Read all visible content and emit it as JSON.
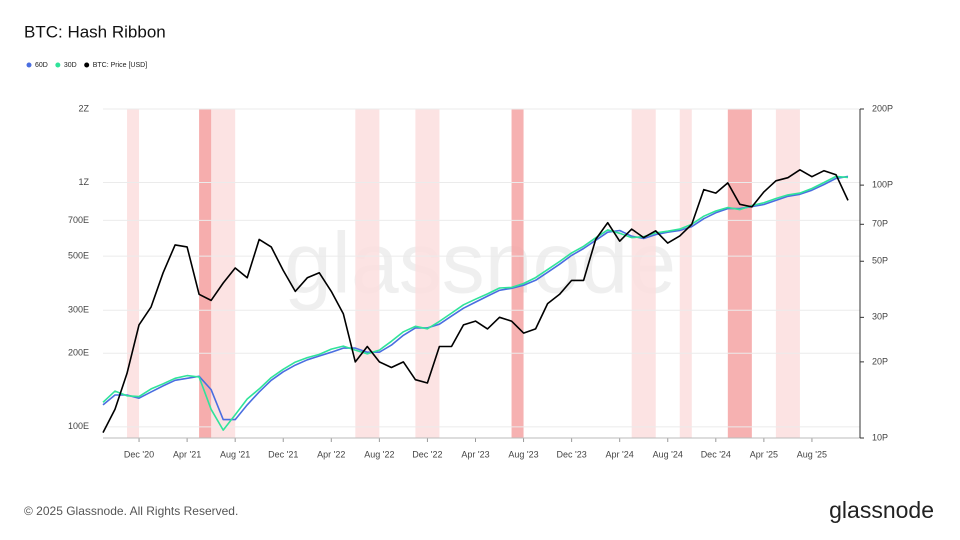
{
  "chart_data": {
    "type": "line",
    "title": "BTC: Hash Ribbon",
    "x": [
      "2020-09",
      "2020-10",
      "2020-11",
      "2020-12",
      "2021-01",
      "2021-02",
      "2021-03",
      "2021-04",
      "2021-05",
      "2021-06",
      "2021-07",
      "2021-08",
      "2021-09",
      "2021-10",
      "2021-11",
      "2021-12",
      "2022-01",
      "2022-02",
      "2022-03",
      "2022-04",
      "2022-05",
      "2022-06",
      "2022-07",
      "2022-08",
      "2022-09",
      "2022-10",
      "2022-11",
      "2022-12",
      "2023-01",
      "2023-02",
      "2023-03",
      "2023-04",
      "2023-05",
      "2023-06",
      "2023-07",
      "2023-08",
      "2023-09",
      "2023-10",
      "2023-11",
      "2023-12",
      "2024-01",
      "2024-02",
      "2024-03",
      "2024-04",
      "2024-05",
      "2024-06",
      "2024-07",
      "2024-08",
      "2024-09",
      "2024-10",
      "2024-11",
      "2024-12",
      "2025-01",
      "2025-02",
      "2025-03",
      "2025-04",
      "2025-05",
      "2025-06",
      "2025-07",
      "2025-08",
      "2025-09",
      "2025-10",
      "2025-11"
    ],
    "series": [
      {
        "name": "60D",
        "color": "#4a6ee0",
        "axis": "y",
        "values": [
          123,
          135,
          135,
          131,
          139,
          147,
          155,
          158,
          161,
          142,
          107,
          107,
          123,
          139,
          155,
          168,
          179,
          188,
          195,
          202,
          210,
          210,
          202,
          202,
          216,
          237,
          254,
          254,
          263,
          284,
          306,
          324,
          343,
          362,
          369,
          380,
          398,
          429,
          463,
          503,
          537,
          580,
          626,
          636,
          603,
          590,
          612,
          626,
          636,
          660,
          711,
          752,
          782,
          782,
          797,
          813,
          845,
          878,
          895,
          930,
          982,
          1040,
          1060
        ]
      },
      {
        "name": "30D",
        "color": "#2fe39a",
        "axis": "y",
        "values": [
          126,
          140,
          134,
          133,
          143,
          150,
          158,
          162,
          160,
          118,
          97,
          112,
          130,
          143,
          159,
          172,
          184,
          192,
          198,
          208,
          214,
          206,
          199,
          206,
          224,
          245,
          258,
          252,
          270,
          292,
          316,
          333,
          350,
          370,
          372,
          386,
          408,
          440,
          475,
          515,
          548,
          594,
          640,
          620,
          595,
          600,
          622,
          632,
          645,
          675,
          728,
          765,
          790,
          775,
          805,
          826,
          860,
          890,
          905,
          945,
          1000,
          1060,
          1050
        ]
      },
      {
        "name": "BTC: Price [USD]",
        "color": "#000000",
        "axis": "y2",
        "values": [
          10.5,
          13,
          18,
          28,
          33,
          45,
          58,
          57,
          37,
          35,
          41,
          47,
          43,
          61,
          57,
          46,
          38,
          43,
          45,
          38,
          31,
          20,
          23,
          20,
          19,
          20,
          17,
          16.5,
          23,
          23,
          28,
          29,
          27,
          30,
          29,
          26,
          27,
          34,
          37,
          42,
          42,
          61,
          71,
          60,
          67,
          62,
          66,
          59,
          63,
          70,
          96,
          93,
          102,
          84,
          82,
          94,
          104,
          107,
          115,
          108,
          114,
          110,
          87
        ]
      }
    ],
    "bands": [
      {
        "start": "2020-11",
        "end": "2020-12",
        "color": "#fcdede"
      },
      {
        "start": "2021-05",
        "end": "2021-08",
        "color": "#fcdede"
      },
      {
        "start": "2021-05",
        "end": "2021-06",
        "color": "#f4a3a3"
      },
      {
        "start": "2022-06",
        "end": "2022-08",
        "color": "#fcdede"
      },
      {
        "start": "2022-11",
        "end": "2023-01",
        "color": "#fcdede"
      },
      {
        "start": "2023-07",
        "end": "2023-08",
        "color": "#f4a3a3"
      },
      {
        "start": "2024-05",
        "end": "2024-07",
        "color": "#fcdede"
      },
      {
        "start": "2024-09",
        "end": "2024-10",
        "color": "#fcdede"
      },
      {
        "start": "2025-01",
        "end": "2025-03",
        "color": "#f4a3a3"
      },
      {
        "start": "2025-05",
        "end": "2025-07",
        "color": "#fcdede"
      }
    ],
    "xlim": [
      "2020-09",
      "2025-12"
    ],
    "xticks": [
      {
        "value": "2020-12",
        "label": "Dec '20"
      },
      {
        "value": "2021-04",
        "label": "Apr '21"
      },
      {
        "value": "2021-08",
        "label": "Aug '21"
      },
      {
        "value": "2021-12",
        "label": "Dec '21"
      },
      {
        "value": "2022-04",
        "label": "Apr '22"
      },
      {
        "value": "2022-08",
        "label": "Aug '22"
      },
      {
        "value": "2022-12",
        "label": "Dec '22"
      },
      {
        "value": "2023-04",
        "label": "Apr '23"
      },
      {
        "value": "2023-08",
        "label": "Aug '23"
      },
      {
        "value": "2023-12",
        "label": "Dec '23"
      },
      {
        "value": "2024-04",
        "label": "Apr '24"
      },
      {
        "value": "2024-08",
        "label": "Aug '24"
      },
      {
        "value": "2024-12",
        "label": "Dec '24"
      },
      {
        "value": "2025-04",
        "label": "Apr '25"
      },
      {
        "value": "2025-08",
        "label": "Aug '25"
      }
    ],
    "ylim": [
      90,
      2000
    ],
    "log_y": true,
    "yticks": [
      {
        "value": 100,
        "label": "100E"
      },
      {
        "value": 200,
        "label": "200E"
      },
      {
        "value": 300,
        "label": "300E"
      },
      {
        "value": 500,
        "label": "500E"
      },
      {
        "value": 700,
        "label": "700E"
      },
      {
        "value": 1000,
        "label": "1Z"
      },
      {
        "value": 2000,
        "label": "2Z"
      }
    ],
    "y2lim": [
      10,
      200
    ],
    "y2ticks": [
      {
        "value": 10,
        "label": "10P"
      },
      {
        "value": 20,
        "label": "20P"
      },
      {
        "value": 30,
        "label": "30P"
      },
      {
        "value": 50,
        "label": "50P"
      },
      {
        "value": 70,
        "label": "70P"
      },
      {
        "value": 100,
        "label": "100P"
      },
      {
        "value": 200,
        "label": "200P"
      }
    ],
    "grid": true,
    "watermark": "glassnode",
    "footer": "© 2025 Glassnode. All Rights Reserved.",
    "logo": "glassnode"
  }
}
